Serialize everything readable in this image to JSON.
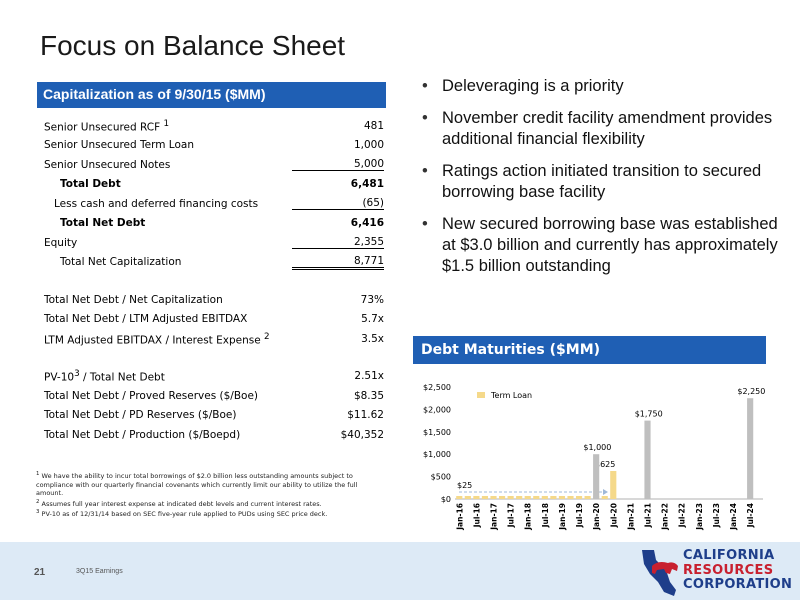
{
  "title": "Focus on Balance Sheet",
  "cap": {
    "header": "Capitalization as of 9/30/15 ($MM)",
    "rows": [
      {
        "label": "Senior Unsecured RCF",
        "sup": "1",
        "value": "481"
      },
      {
        "label": "Senior Unsecured Term Loan",
        "sup": "",
        "value": "1,000"
      },
      {
        "label": "Senior Unsecured Notes",
        "sup": "",
        "value": "5,000"
      },
      {
        "label": "Total Debt",
        "sup": "",
        "value": "6,481"
      },
      {
        "label": "Less cash and deferred financing costs",
        "sup": "",
        "value": "(65)"
      },
      {
        "label": "Total Net Debt",
        "sup": "",
        "value": "6,416"
      },
      {
        "label": "Equity",
        "sup": "",
        "value": "2,355"
      },
      {
        "label": "Total Net Capitalization",
        "sup": "",
        "value": "8,771"
      }
    ],
    "ratios": [
      {
        "label": "Total Net Debt / Net Capitalization",
        "sup": "",
        "value": "73%"
      },
      {
        "label": "Total Net Debt / LTM Adjusted EBITDAX",
        "sup": "",
        "value": "5.7x"
      },
      {
        "label": "LTM Adjusted EBITDAX / Interest Expense",
        "sup": "2",
        "value": "3.5x"
      }
    ],
    "metrics": [
      {
        "label_pre": "PV-10",
        "sup": "3",
        "label_post": " / Total Net Debt",
        "value": "2.51x"
      },
      {
        "label_pre": "Total Net Debt / Proved Reserves ($/Boe)",
        "sup": "",
        "label_post": "",
        "value": "$8.35"
      },
      {
        "label_pre": "Total Net Debt / PD Reserves ($/Boe)",
        "sup": "",
        "label_post": "",
        "value": "$11.62"
      },
      {
        "label_pre": "Total Net Debt / Production ($/Boepd)",
        "sup": "",
        "label_post": "",
        "value": "$40,352"
      }
    ]
  },
  "footnotes": [
    {
      "num": "1",
      "text": "We have the ability to incur total borrowings of $2.0 billion less outstanding amounts subject to compliance with our quarterly financial covenants which currently limit our ability to utilize the full amount."
    },
    {
      "num": "2",
      "text": "Assumes full year interest expense at indicated debt levels and current interest rates."
    },
    {
      "num": "3",
      "text": "PV-10 as of 12/31/14 based on SEC five-year rule applied to PUDs using SEC price deck."
    }
  ],
  "bullets": [
    "Deleveraging is a priority",
    "November credit facility amendment provides additional financial flexibility",
    "Ratings action initiated transition to secured borrowing base facility",
    "New secured borrowing base was established at $3.0 billion and currently has approximately $1.5 billion outstanding"
  ],
  "debt_header": "Debt Maturities ($MM)",
  "chart_data": {
    "type": "bar",
    "legend": "Term Loan",
    "legend_position": "top-left",
    "ylim": [
      0,
      2500
    ],
    "yticks": [
      "$0",
      "$500",
      "$1,000",
      "$1,500",
      "$2,000",
      "$2,500"
    ],
    "xticks": [
      "Jan-16",
      "Jul-16",
      "Jan-17",
      "Jul-17",
      "Jan-18",
      "Jul-18",
      "Jan-19",
      "Jul-19",
      "Jan-20",
      "Jul-20",
      "Jan-21",
      "Jul-21",
      "Jan-22",
      "Jul-22",
      "Jan-23",
      "Jul-23",
      "Jan-24",
      "Jul-24"
    ],
    "term_loan_quarters": 19,
    "term_loan_value": 25,
    "term_loan_final": 625,
    "term_loan_final_label": "$625",
    "term_loan_first_label": "$25",
    "bars": [
      {
        "x": "Jan-20",
        "value": 1000,
        "label": "$1,000"
      },
      {
        "x": "Jul-21",
        "value": 1750,
        "label": "$1,750"
      },
      {
        "x": "Jul-24",
        "value": 2250,
        "label": "$2,250"
      }
    ],
    "term_loan_color": "#f5d98a",
    "bar_color": "#bfbfbf"
  },
  "footer": {
    "page": "21",
    "text": "3Q15 Earnings",
    "logo_lines": [
      "CALIFORNIA",
      "RESOURCES",
      "CORPORATION"
    ]
  }
}
